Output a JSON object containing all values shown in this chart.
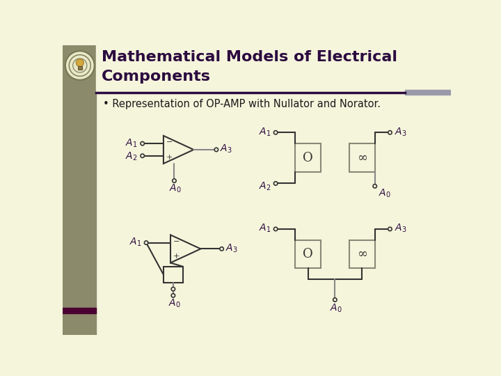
{
  "title_line1": "Mathematical Models of Electrical",
  "title_line2": "Components",
  "subtitle": "• Representation of OP-AMP with Nullator and Norator.",
  "bg_color": "#F5F5DC",
  "sidebar_color": "#8B8B6B",
  "title_color": "#2B0B3F",
  "subtitle_color": "#1A1A1A",
  "line_color": "#333333",
  "gray_line_color": "#888888",
  "separator_color": "#2B0B3F",
  "accent_bar_color": "#9999AA",
  "box_color": "#888877"
}
